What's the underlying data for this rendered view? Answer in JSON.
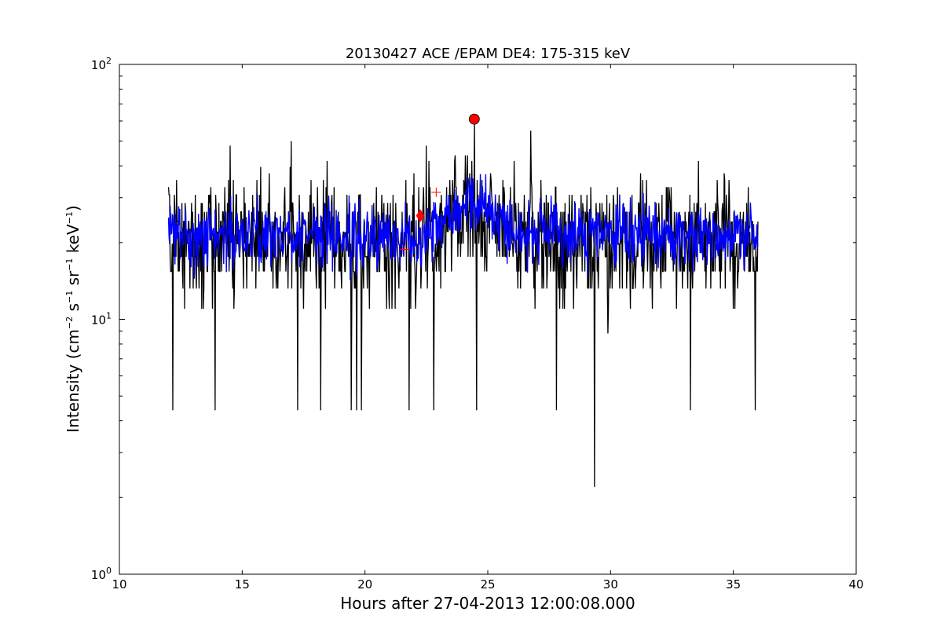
{
  "chart_data": {
    "type": "line",
    "title": "20130427 ACE /EPAM DE4: 175-315 keV",
    "xlabel": "Hours after 27-04-2013 12:00:08.000",
    "ylabel": {
      "prefix": "Intensity (cm",
      "sup1": "−2",
      "mid1": " s",
      "sup2": "−1",
      "mid2": " sr",
      "sup3": "−1",
      "mid3": " keV",
      "sup4": "−1",
      "suffix": ")"
    },
    "xlim": [
      10,
      40
    ],
    "ylim": [
      1,
      100
    ],
    "yscale": "log",
    "grid": false,
    "x_ticks": [
      10,
      15,
      20,
      25,
      30,
      35,
      40
    ],
    "x_tick_labels": [
      "10",
      "15",
      "20",
      "25",
      "30",
      "35",
      "40"
    ],
    "y_ticks": [
      1,
      10,
      100
    ],
    "y_tick_labels": [
      {
        "base": "10",
        "exp": "0"
      },
      {
        "base": "10",
        "exp": "1"
      },
      {
        "base": "10",
        "exp": "2"
      }
    ],
    "series": [
      {
        "role": "raw",
        "color": "#000000",
        "x_range": [
          12.0,
          36.0
        ],
        "baseline": 20.5,
        "levels": [
          4.4,
          6.6,
          8.8,
          11.0,
          13.2,
          15.4,
          17.6,
          19.8,
          22.0,
          24.2,
          26.4,
          28.6,
          30.8,
          33.0,
          35.2,
          37.4,
          39.6,
          41.8,
          44.0,
          48.4,
          55.0,
          61.0
        ],
        "spikes_down": [
          {
            "x": 12.18,
            "y": 4.4
          },
          {
            "x": 13.9,
            "y": 4.4
          },
          {
            "x": 17.25,
            "y": 4.4
          },
          {
            "x": 18.2,
            "y": 4.4
          },
          {
            "x": 19.45,
            "y": 4.4
          },
          {
            "x": 19.65,
            "y": 4.4
          },
          {
            "x": 19.85,
            "y": 4.4
          },
          {
            "x": 21.8,
            "y": 4.4
          },
          {
            "x": 22.8,
            "y": 4.4
          },
          {
            "x": 24.55,
            "y": 4.4
          },
          {
            "x": 27.8,
            "y": 4.4
          },
          {
            "x": 29.35,
            "y": 2.2
          },
          {
            "x": 33.25,
            "y": 4.4
          },
          {
            "x": 35.9,
            "y": 4.4
          }
        ],
        "spikes_up": [
          {
            "x": 24.45,
            "y": 61.0
          },
          {
            "x": 26.75,
            "y": 55.0
          },
          {
            "x": 17.0,
            "y": 50.0
          },
          {
            "x": 14.5,
            "y": 48.0
          },
          {
            "x": 22.5,
            "y": 48.0
          }
        ]
      },
      {
        "role": "smoothed",
        "color": "#0000ff",
        "x_range": [
          12.0,
          36.0
        ],
        "baseline": 21.5
      }
    ],
    "markers": [
      {
        "shape": "circle",
        "x": 24.45,
        "y": 61.0,
        "color": "#ff0000",
        "edge": "#000000"
      },
      {
        "shape": "diamond",
        "x": 22.25,
        "y": 25.5,
        "color": "#ff0000"
      },
      {
        "shape": "plus",
        "x": 22.9,
        "y": 31.5,
        "color": "#ff0000"
      },
      {
        "shape": "plus",
        "x": 21.6,
        "y": 18.8,
        "color": "#ff0000"
      }
    ]
  }
}
